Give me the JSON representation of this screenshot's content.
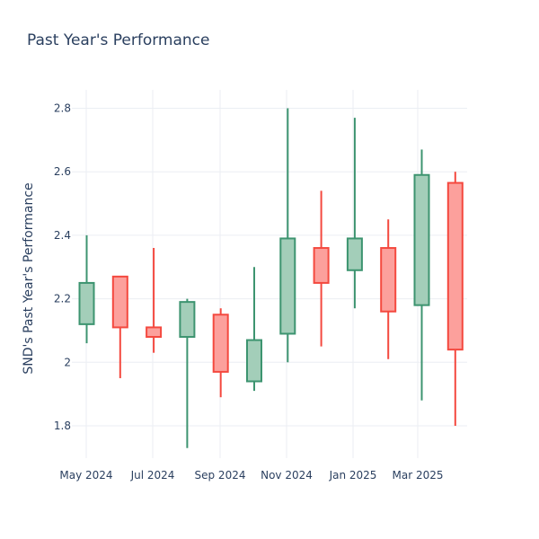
{
  "chart_data": {
    "type": "candlestick",
    "title": "Past Year's Performance",
    "xlabel": "",
    "ylabel": "SND's Past Year's Performance",
    "ylim": [
      1.68,
      2.86
    ],
    "y_ticks": [
      {
        "value": 1.8,
        "label": "1.8"
      },
      {
        "value": 2.0,
        "label": "2"
      },
      {
        "value": 2.2,
        "label": "2.2"
      },
      {
        "value": 2.4,
        "label": "2.4"
      },
      {
        "value": 2.6,
        "label": "2.6"
      },
      {
        "value": 2.8,
        "label": "2.8"
      }
    ],
    "x_ticks": [
      "May 2024",
      "Jul 2024",
      "Sep 2024",
      "Nov 2024",
      "Jan 2025",
      "Mar 2025"
    ],
    "grid": true,
    "colors": {
      "increasing_line": "#3d9470",
      "increasing_fill": "#a3ceb9",
      "decreasing_line": "#f4493f",
      "decreasing_fill": "#fca09c",
      "text": "#2a3f5f",
      "grid": "#ebeef3"
    },
    "candles": [
      {
        "open": 2.12,
        "high": 2.4,
        "low": 2.06,
        "close": 2.25
      },
      {
        "open": 2.27,
        "high": 2.27,
        "low": 1.95,
        "close": 2.11
      },
      {
        "open": 2.11,
        "high": 2.36,
        "low": 2.03,
        "close": 2.08
      },
      {
        "open": 2.08,
        "high": 2.2,
        "low": 1.73,
        "close": 2.19
      },
      {
        "open": 2.15,
        "high": 2.17,
        "low": 1.89,
        "close": 1.97
      },
      {
        "open": 1.94,
        "high": 2.3,
        "low": 1.91,
        "close": 2.07
      },
      {
        "open": 2.09,
        "high": 2.8,
        "low": 2.0,
        "close": 2.39
      },
      {
        "open": 2.36,
        "high": 2.54,
        "low": 2.05,
        "close": 2.25
      },
      {
        "open": 2.29,
        "high": 2.77,
        "low": 2.17,
        "close": 2.39
      },
      {
        "open": 2.36,
        "high": 2.45,
        "low": 2.01,
        "close": 2.16
      },
      {
        "open": 2.18,
        "high": 2.67,
        "low": 1.88,
        "close": 2.59
      },
      {
        "open": 2.565,
        "high": 2.6,
        "low": 1.8,
        "close": 2.04
      }
    ]
  }
}
